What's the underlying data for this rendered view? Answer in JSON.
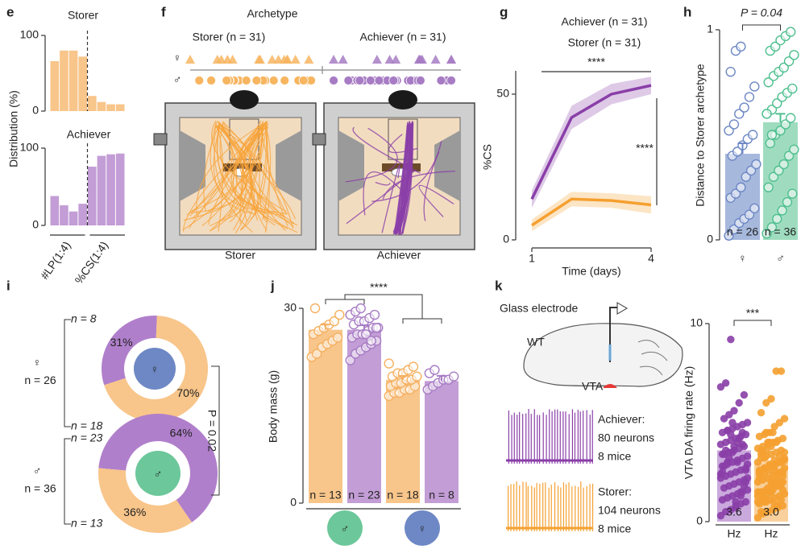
{
  "panel_labels": [
    "e",
    "f",
    "g",
    "h",
    "i",
    "j",
    "k"
  ],
  "chart_data": [
    {
      "type": "bar",
      "title": "Storer",
      "ylabel": "Distribution (%)",
      "categories": [
        null,
        null,
        null,
        null,
        null,
        null,
        null,
        null
      ],
      "values": [
        66,
        80,
        80,
        72,
        20,
        12,
        9,
        9
      ],
      "color": "#f8c58a",
      "ylim": [
        0,
        100
      ],
      "yticks": [
        0,
        100
      ]
    },
    {
      "type": "bar",
      "title": "Achiever",
      "categories": [
        null,
        null,
        null,
        null,
        null,
        null,
        null,
        null
      ],
      "values": [
        38,
        26,
        18,
        28,
        76,
        90,
        92,
        93
      ],
      "color": "#c39dd6",
      "ylim": [
        0,
        100
      ],
      "yticks": [
        0,
        100
      ],
      "group_labels": [
        "#LP(1:4)",
        "%CS(1:4)"
      ]
    },
    {
      "type": "line",
      "xlabel": "Time (days)",
      "ylabel": "%CS",
      "x": [
        1,
        2,
        3,
        4
      ],
      "xlim": [
        1,
        4
      ],
      "xticks": [
        1,
        4
      ],
      "ylim": [
        0,
        58
      ],
      "yticks": [
        0,
        50
      ],
      "series": [
        {
          "name": "Achiever (n = 31)",
          "color": "#8a3fa8",
          "values": [
            14,
            42,
            50,
            53
          ],
          "errors": [
            3,
            4,
            3.5,
            3
          ]
        },
        {
          "name": "Storer (n = 31)",
          "color": "#f5a030",
          "values": [
            5,
            14,
            13.5,
            12
          ],
          "errors": [
            2,
            2.5,
            2.5,
            3
          ]
        }
      ],
      "annotations": [
        "****",
        "****"
      ]
    },
    {
      "type": "bar",
      "title": "P = 0.04",
      "ylabel": "Distance to Storer archetype",
      "categories": [
        "♀",
        "♂"
      ],
      "values": [
        0.41,
        0.56
      ],
      "errors": [
        0.05,
        0.04
      ],
      "colors": [
        "#a7b8dd",
        "#9fdcbf"
      ],
      "point_colors": [
        "#6d88c4",
        "#4fbf8f"
      ],
      "n_labels": [
        "n = 26",
        "n = 36"
      ],
      "ylim": [
        0,
        1
      ],
      "yticks": [
        0,
        1
      ],
      "points": [
        [
          0.02,
          0.05,
          0.08,
          0.1,
          0.12,
          0.15,
          0.2,
          0.22,
          0.25,
          0.3,
          0.33,
          0.36,
          0.4,
          0.42,
          0.45,
          0.48,
          0.5,
          0.52,
          0.55,
          0.6,
          0.63,
          0.68,
          0.73,
          0.8,
          0.9,
          0.92
        ],
        [
          0.03,
          0.06,
          0.1,
          0.14,
          0.18,
          0.22,
          0.25,
          0.3,
          0.33,
          0.36,
          0.4,
          0.43,
          0.46,
          0.5,
          0.52,
          0.55,
          0.58,
          0.6,
          0.62,
          0.65,
          0.68,
          0.7,
          0.72,
          0.75,
          0.78,
          0.8,
          0.82,
          0.85,
          0.88,
          0.9,
          0.92,
          0.95,
          0.97,
          0.99,
          0.6,
          0.5
        ]
      ]
    },
    {
      "type": "pie",
      "categories": [
        "n = 8",
        "n = 18"
      ],
      "values": [
        31,
        70
      ],
      "value_labels": [
        "31%",
        "70%"
      ],
      "colors": [
        "#b07fcb",
        "#f8c58a"
      ],
      "symbol": "♀",
      "symbol_color": "#6d88c4",
      "total_label": "n = 26"
    },
    {
      "type": "pie",
      "categories": [
        "n = 23",
        "n = 13"
      ],
      "values": [
        64,
        36
      ],
      "value_labels": [
        "64%",
        "36%"
      ],
      "colors": [
        "#b07fcb",
        "#f8c58a"
      ],
      "symbol": "♂",
      "symbol_color": "#6cc79a",
      "total_label": "n = 36",
      "annotation": "P = 0.02"
    },
    {
      "type": "bar",
      "ylabel": "Body mass (g)",
      "categories": [
        null,
        null,
        null,
        null
      ],
      "groups": [
        "♂",
        "♀"
      ],
      "group_colors": [
        "#6cc79a",
        "#6d88c4"
      ],
      "values": [
        26.7,
        26.7,
        19.0,
        18.8
      ],
      "errors": [
        0.8,
        0.7,
        0.6,
        0.8
      ],
      "colors": [
        "#f8c58a",
        "#c39dd6",
        "#f8c58a",
        "#c39dd6"
      ],
      "point_colors": [
        "#f5b060",
        "#a77cc4",
        "#f5b060",
        "#a77cc4"
      ],
      "n_labels": [
        "n = 13",
        "n = 23",
        "n = 18",
        "n = 8"
      ],
      "ylim": [
        0,
        30
      ],
      "yticks": [
        0,
        30
      ],
      "annotation": "****",
      "points": [
        [
          22.5,
          23,
          24,
          24.5,
          25,
          25.5,
          26,
          26.5,
          27,
          27.5,
          28,
          29,
          30
        ],
        [
          22,
          23,
          23.5,
          24,
          24.5,
          25,
          25.5,
          26,
          26,
          26.5,
          27,
          27,
          27.5,
          28,
          28,
          28.5,
          29,
          29,
          29.5,
          30,
          26,
          25,
          27
        ],
        [
          16.5,
          17,
          17,
          17.5,
          17.5,
          18,
          18,
          18.5,
          18.5,
          19,
          19,
          19.5,
          19.5,
          20,
          20,
          20.5,
          21,
          21.5
        ],
        [
          17.5,
          18,
          18.5,
          19,
          19,
          19.5,
          20,
          20.5
        ]
      ]
    },
    {
      "type": "bar",
      "ylabel": "VTA DA firing rate (Hz)",
      "categories": [
        "Hz",
        "Hz"
      ],
      "values": [
        3.6,
        3.0
      ],
      "value_labels": [
        "3.6",
        "3.0"
      ],
      "colors": [
        "#caa9dd",
        "#f9d09c"
      ],
      "point_colors": [
        "#8a3fa8",
        "#f5a030"
      ],
      "ylim": [
        0,
        10
      ],
      "yticks": [
        0,
        10
      ],
      "annotation": "***",
      "points": [
        [
          0.3,
          0.5,
          0.6,
          0.8,
          0.9,
          1.0,
          1.1,
          1.2,
          1.3,
          1.4,
          1.5,
          1.6,
          1.7,
          1.8,
          1.9,
          2.0,
          2.1,
          2.2,
          2.3,
          2.4,
          2.5,
          2.6,
          2.7,
          2.8,
          2.9,
          3.0,
          3.1,
          3.2,
          3.3,
          3.4,
          3.5,
          3.6,
          3.7,
          3.8,
          3.9,
          4.0,
          4.1,
          4.2,
          4.3,
          4.4,
          4.5,
          4.6,
          4.7,
          4.8,
          4.9,
          5.0,
          5.2,
          5.4,
          5.6,
          6.0,
          6.4,
          6.8,
          7.0,
          9.2,
          1.0,
          1.5,
          2.0,
          2.5,
          3.0,
          3.5,
          4.0,
          4.5,
          2.2,
          2.8,
          3.2,
          3.8,
          4.2,
          1.8,
          2.4,
          3.6,
          4.4,
          0.7,
          1.3,
          2.6,
          3.4,
          4.6,
          5.0,
          3.0,
          3.9,
          2.9
        ],
        [
          0.2,
          0.4,
          0.5,
          0.6,
          0.7,
          0.8,
          0.9,
          1.0,
          1.1,
          1.2,
          1.3,
          1.4,
          1.5,
          1.6,
          1.7,
          1.8,
          1.9,
          2.0,
          2.1,
          2.2,
          2.3,
          2.4,
          2.5,
          2.6,
          2.7,
          2.8,
          2.9,
          3.0,
          3.1,
          3.2,
          3.3,
          3.4,
          3.5,
          3.6,
          3.7,
          3.8,
          3.9,
          4.0,
          4.1,
          4.2,
          4.3,
          4.4,
          4.5,
          4.8,
          5.0,
          5.2,
          5.5,
          6.0,
          6.2,
          7.6,
          7.6,
          1.0,
          1.2,
          1.4,
          1.6,
          1.8,
          2.0,
          2.2,
          2.4,
          2.6,
          2.8,
          3.0,
          3.2,
          3.4,
          3.6,
          3.8,
          4.0,
          1.1,
          1.3,
          1.5,
          1.7,
          1.9,
          2.1,
          2.3,
          2.5,
          2.7,
          2.9,
          3.1,
          3.3,
          3.5,
          0.5,
          1.0,
          1.5,
          2.0,
          2.5,
          3.0,
          3.5,
          4.0,
          4.5,
          0.8,
          1.6,
          2.4,
          3.2,
          4.0,
          0.9,
          1.8,
          2.7,
          3.6,
          4.5,
          2.0,
          2.5,
          3.0,
          1.5,
          1.2
        ]
      ]
    }
  ],
  "archetype_diagram": {
    "title": "Archetype",
    "groups": [
      "Storer (n = 31)",
      "Achiever (n = 31)"
    ],
    "sex_labels": [
      "♀",
      "♂"
    ],
    "box_labels": [
      "Storer",
      "Achiever"
    ]
  },
  "recording_diagram": {
    "electrode": "Glass electrode",
    "strain": "WT",
    "region": "VTA",
    "traces": [
      [
        "Achiever:",
        "80 neurons",
        "8 mice"
      ],
      [
        "Storer:",
        "104 neurons",
        "8 mice"
      ]
    ]
  }
}
